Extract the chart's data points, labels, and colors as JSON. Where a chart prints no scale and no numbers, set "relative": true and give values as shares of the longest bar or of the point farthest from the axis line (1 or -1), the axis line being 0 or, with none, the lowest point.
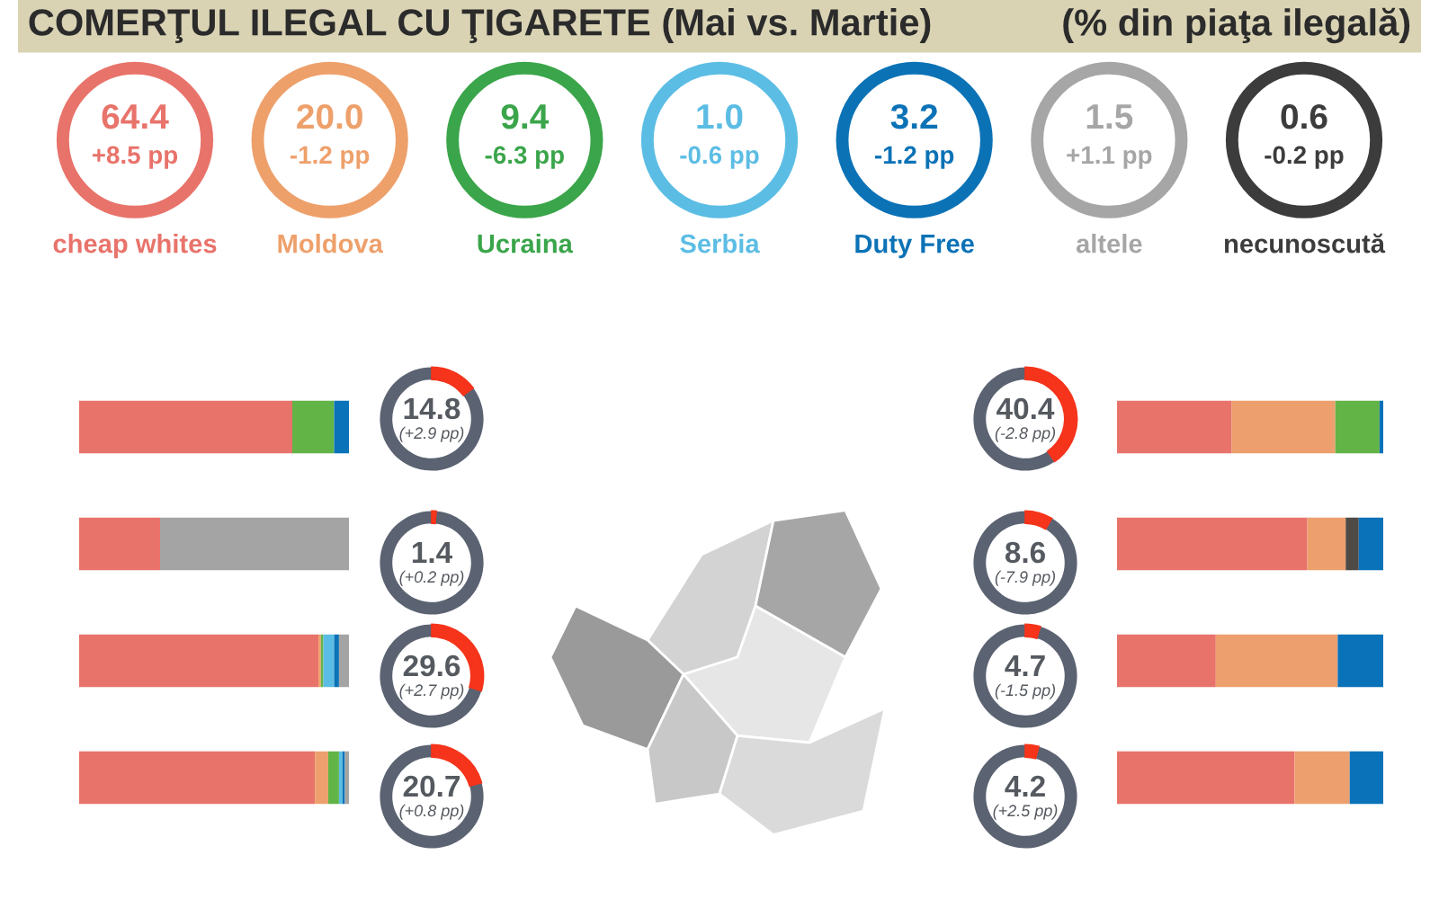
{
  "chart_data": [
    {
      "type": "other",
      "title": "COMERŢUL ILEGAL CU ŢIGARETE (Mai vs. Martie)",
      "subtitle": "(% din piaţa ilegală)",
      "categories": [
        "cheap whites",
        "Moldova",
        "Ucraina",
        "Serbia",
        "Duty Free",
        "altele",
        "necunoscută"
      ],
      "value_labels": [
        "64.4",
        "20.0",
        "9.4",
        "1.0",
        "3.2",
        "1.5",
        "0.6"
      ],
      "colors": [
        "#e8736a",
        "#eea06b",
        "#3aa54a",
        "#5cbde4",
        "#0b72b6",
        "#a6a6a6",
        "#3c3c3c"
      ],
      "annotations": [
        "+8.5 pp",
        "-1.2 pp",
        "-6.3 pp",
        "-0.6 pp",
        "-1.2 pp",
        "+1.1 pp",
        "-0.2 pp"
      ]
    },
    {
      "type": "bar",
      "orientation": "horizontal",
      "stacked": true,
      "relative": true,
      "categories": [
        null,
        null,
        null,
        null
      ],
      "series": [
        {
          "color": "#e8736a",
          "values": [
            0.79,
            0.3,
            0.887,
            0.874
          ]
        },
        {
          "color": "#eda06e",
          "values": [
            null,
            null,
            0.009,
            0.049
          ]
        },
        {
          "color": "#62b446",
          "values": [
            0.155,
            null,
            0.009,
            0.04
          ]
        },
        {
          "color": "#5bbde3",
          "values": [
            null,
            null,
            0.04,
            0.013
          ]
        },
        {
          "color": "#0a72b8",
          "values": [
            0.055,
            null,
            0.018,
            0.009
          ]
        },
        {
          "color": "#a4a4a4",
          "values": [
            null,
            0.7,
            0.037,
            0.015
          ]
        }
      ]
    },
    {
      "type": "donut",
      "categories": [
        null,
        null
      ],
      "values": [
        14.8,
        85.2
      ],
      "value_labels": [
        "14.8",
        null
      ],
      "colors": [
        "#f5341b",
        "#5b6271"
      ],
      "annotations": [
        "(+2.9 pp)"
      ]
    },
    {
      "type": "donut",
      "categories": [
        null,
        null
      ],
      "values": [
        40.4,
        59.6
      ],
      "value_labels": [
        "40.4",
        null
      ],
      "colors": [
        "#f5341b",
        "#5b6271"
      ],
      "annotations": [
        "(-2.8 pp)"
      ]
    },
    {
      "type": "donut",
      "categories": [
        null,
        null
      ],
      "values": [
        8.6,
        91.4
      ],
      "value_labels": [
        "8.6",
        null
      ],
      "colors": [
        "#f5341b",
        "#5b6271"
      ],
      "annotations": [
        "(-7.9 pp)"
      ]
    },
    {
      "type": "donut",
      "categories": [
        null,
        null
      ],
      "values": [
        29.6,
        70.4
      ],
      "value_labels": [
        "29.6",
        null
      ],
      "colors": [
        "#f5341b",
        "#5b6271"
      ],
      "annotations": [
        "(+2.7 pp)"
      ]
    },
    {
      "type": "donut",
      "categories": [
        null,
        null
      ],
      "values": [
        4.7,
        95.3
      ],
      "value_labels": [
        "4.7",
        null
      ],
      "colors": [
        "#f5341b",
        "#5b6271"
      ],
      "annotations": [
        "(-1.5 pp)"
      ]
    },
    {
      "type": "donut",
      "categories": [
        null,
        null
      ],
      "values": [
        20.7,
        79.3
      ],
      "value_labels": [
        "20.7",
        null
      ],
      "colors": [
        "#f5341b",
        "#5b6271"
      ],
      "annotations": [
        "(+0.8 pp)"
      ]
    },
    {
      "type": "donut",
      "categories": [
        null,
        null
      ],
      "values": [
        4.2,
        95.8
      ],
      "value_labels": [
        "4.2",
        null
      ],
      "colors": [
        "#f5341b",
        "#5b6271"
      ],
      "annotations": [
        "(+2.5 pp)"
      ]
    },
    {
      "type": "donut",
      "categories": [
        null,
        null
      ],
      "values": [
        1.4,
        98.6
      ],
      "value_labels": [
        "1.4",
        null
      ],
      "colors": [
        "#f5341b",
        "#5b6271"
      ],
      "annotations": [
        "(+0.2 pp)"
      ]
    },
    {
      "type": "bar",
      "orientation": "horizontal",
      "stacked": true,
      "relative": true,
      "categories": [
        null,
        null,
        null,
        null
      ],
      "series": [
        {
          "color": "#e8736a",
          "values": [
            0.431,
            0.715,
            0.371,
            0.667
          ]
        },
        {
          "color": "#eda06e",
          "values": [
            0.389,
            0.144,
            0.458,
            0.207
          ]
        },
        {
          "color": "#62b446",
          "values": [
            0.166,
            null,
            null,
            null
          ]
        },
        {
          "color": "#4e4a46",
          "values": [
            null,
            0.049,
            null,
            null
          ]
        },
        {
          "color": "#0a72b8",
          "values": [
            0.014,
            0.092,
            0.171,
            0.126
          ]
        }
      ]
    }
  ]
}
